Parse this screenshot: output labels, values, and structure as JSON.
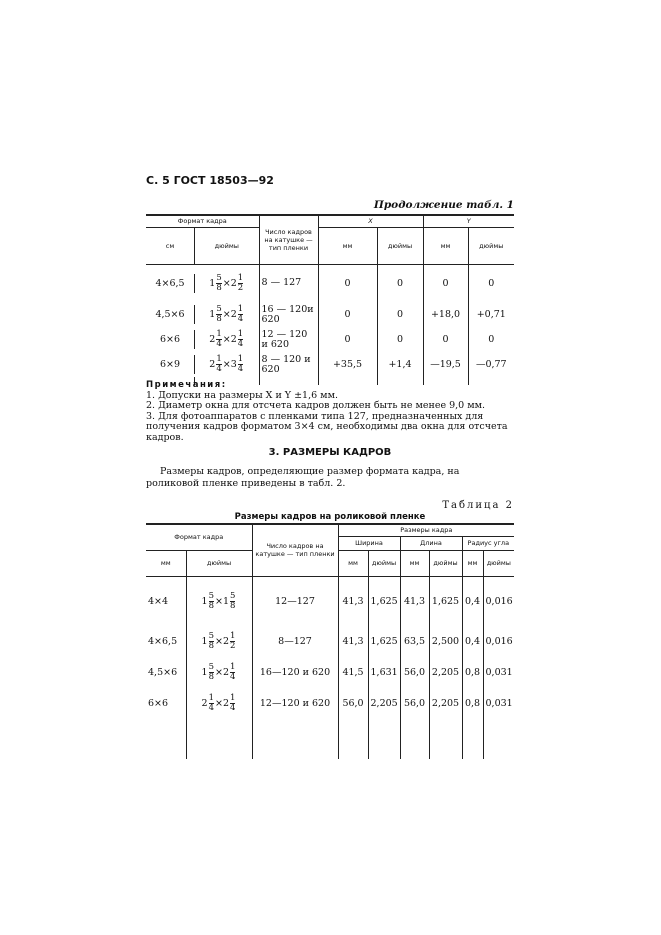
{
  "header": "С. 5 ГОСТ 18503—92",
  "table1": {
    "continuation": "Продолжение табл. 1",
    "headers": {
      "format": "Формат кадра",
      "cm": "см",
      "inches": "дюймы",
      "frames": "Число кадров на катушке — тип пленки",
      "x": "X",
      "y": "Y",
      "mm": "мм",
      "inch": "дюймы"
    },
    "rows": [
      {
        "cm": "4×6,5",
        "a": [
          "1",
          "5",
          "8"
        ],
        "b": [
          "2",
          "1",
          "2"
        ],
        "frames": "8 — 127",
        "xmm": "0",
        "xin": "0",
        "ymm": "0",
        "yin": "0"
      },
      {
        "cm": "4,5×6",
        "a": [
          "1",
          "5",
          "8"
        ],
        "b": [
          "2",
          "1",
          "4"
        ],
        "frames": "16 — 120и 620",
        "xmm": "0",
        "xin": "0",
        "ymm": "+18,0",
        "yin": "+0,71"
      },
      {
        "cm": "6×6",
        "a": [
          "2",
          "1",
          "4"
        ],
        "b": [
          "2",
          "1",
          "4"
        ],
        "frames": "12 — 120 и 620",
        "xmm": "0",
        "xin": "0",
        "ymm": "0",
        "yin": "0"
      },
      {
        "cm": "6×9",
        "a": [
          "2",
          "1",
          "4"
        ],
        "b": [
          "3",
          "1",
          "4"
        ],
        "frames": "8 — 120 и 620",
        "xmm": "+35,5",
        "xin": "+1,4",
        "ymm": "—19,5",
        "yin": "—0,77"
      }
    ]
  },
  "notes": {
    "title": "Примечания:",
    "items": [
      "1. Допуски на размеры X и Y ±1,6 мм.",
      "2. Диаметр окна для отсчета кадров должен быть не менее 9,0 мм.",
      "3. Для фотоаппаратов с пленками типа 127, предназначенных для получения кадров форматом 3×4 см, необходимы два окна для отсчета кадров."
    ]
  },
  "section": {
    "title": "3. РАЗМЕРЫ КАДРОВ",
    "text": "Размеры кадров, определяющие размер формата кадра, на роликовой пленке приведены в табл. 2."
  },
  "table2": {
    "label": "Таблица 2",
    "caption": "Размеры кадров на роликовой пленке",
    "headers": {
      "format": "Формат кадра",
      "mm": "мм",
      "inches": "дюймы",
      "frames": "Число кадров на катушке — тип пленки",
      "sizes": "Размеры кадра",
      "width": "Ширина",
      "length": "Длина",
      "radius": "Радиус угла",
      "inch": "дюймы"
    },
    "rows": [
      {
        "mm": "4×4",
        "a": [
          "1",
          "5",
          "8"
        ],
        "b": [
          "1",
          "5",
          "8"
        ],
        "frames": "12—127",
        "wmm": "41,3",
        "win": "1,625",
        "lmm": "41,3",
        "lin": "1,625",
        "rmm": "0,4",
        "rin": "0,016"
      },
      {
        "mm": "4×6,5",
        "a": [
          "1",
          "5",
          "8"
        ],
        "b": [
          "2",
          "1",
          "2"
        ],
        "frames": "8—127",
        "wmm": "41,3",
        "win": "1,625",
        "lmm": "63,5",
        "lin": "2,500",
        "rmm": "0,4",
        "rin": "0,016"
      },
      {
        "mm": "4,5×6",
        "a": [
          "1",
          "5",
          "8"
        ],
        "b": [
          "2",
          "1",
          "4"
        ],
        "frames": "16—120 и 620",
        "wmm": "41,5",
        "win": "1,631",
        "lmm": "56,0",
        "lin": "2,205",
        "rmm": "0,8",
        "rin": "0,031"
      },
      {
        "mm": "6×6",
        "a": [
          "2",
          "1",
          "4"
        ],
        "b": [
          "2",
          "1",
          "4"
        ],
        "frames": "12—120 и 620",
        "wmm": "56,0",
        "win": "2,205",
        "lmm": "56,0",
        "lin": "2,205",
        "rmm": "0,8",
        "rin": "0,031"
      }
    ]
  }
}
